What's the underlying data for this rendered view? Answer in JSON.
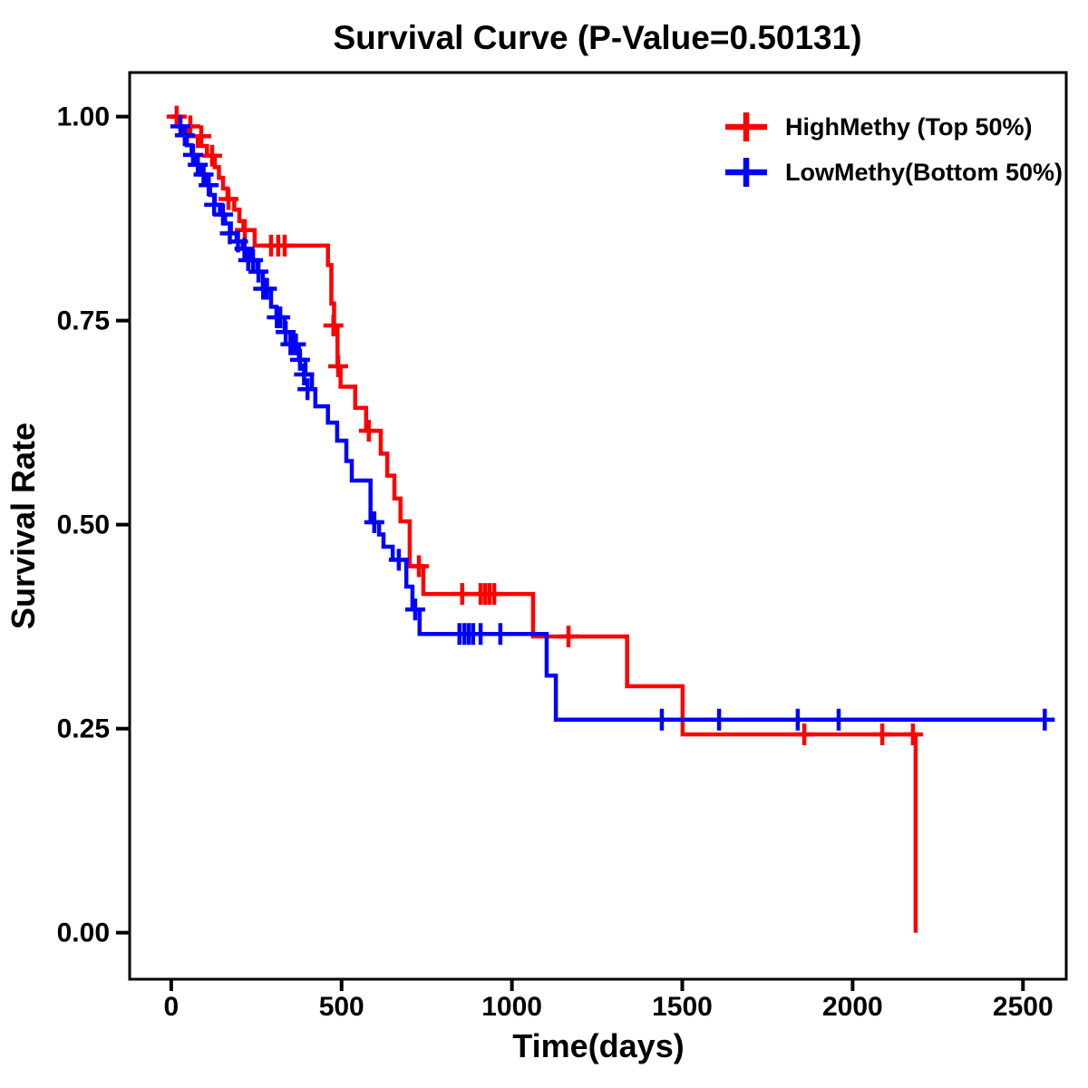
{
  "chart_data": {
    "type": "line",
    "chart_style": "kaplan-meier-survival-step",
    "title": "Survival Curve (P-Value=0.50131)",
    "p_value": "0.50131",
    "xlabel": "Time(days)",
    "ylabel": "Survival Rate",
    "xlim": [
      -122,
      2627
    ],
    "ylim": [
      -0.057,
      1.054
    ],
    "xticks": [
      0,
      500,
      1000,
      1500,
      2000,
      2500
    ],
    "xtick_labels": [
      "0",
      "500",
      "1000",
      "1500",
      "2000",
      "2500"
    ],
    "yticks": [
      0,
      0.25,
      0.5,
      0.75,
      1
    ],
    "ytick_labels": [
      "0.00",
      "0.25",
      "0.50",
      "0.75",
      "1.00"
    ],
    "grid": false,
    "legend": {
      "position": "top-right",
      "items": [
        {
          "label": "HighMethy (Top 50%)",
          "color": "#FF0000"
        },
        {
          "label": "LowMethy(Bottom 50%)",
          "color": "#0000FF"
        }
      ]
    },
    "series": [
      {
        "name": "HighMethy (Top 50%)",
        "color": "#FF0000",
        "steps": [
          [
            0,
            1.0
          ],
          [
            25,
            0.988
          ],
          [
            50,
            0.976
          ],
          [
            78,
            0.964
          ],
          [
            105,
            0.952
          ],
          [
            128,
            0.938
          ],
          [
            140,
            0.925
          ],
          [
            152,
            0.912
          ],
          [
            165,
            0.899
          ],
          [
            185,
            0.886
          ],
          [
            200,
            0.872
          ],
          [
            212,
            0.861
          ],
          [
            245,
            0.842
          ],
          [
            460,
            0.818
          ],
          [
            470,
            0.771
          ],
          [
            478,
            0.744
          ],
          [
            488,
            0.694
          ],
          [
            497,
            0.669
          ],
          [
            540,
            0.643
          ],
          [
            572,
            0.615
          ],
          [
            615,
            0.587
          ],
          [
            634,
            0.56
          ],
          [
            655,
            0.532
          ],
          [
            673,
            0.504
          ],
          [
            700,
            0.449
          ],
          [
            740,
            0.415
          ],
          [
            1062,
            0.363
          ],
          [
            1338,
            0.302
          ],
          [
            1501,
            0.243
          ],
          [
            2185,
            0.0
          ]
        ],
        "censors": [
          [
            16,
            1.0
          ],
          [
            56,
            0.988
          ],
          [
            88,
            0.976
          ],
          [
            120,
            0.952
          ],
          [
            168,
            0.899
          ],
          [
            216,
            0.861
          ],
          [
            293,
            0.842
          ],
          [
            314,
            0.842
          ],
          [
            333,
            0.842
          ],
          [
            476,
            0.744
          ],
          [
            490,
            0.694
          ],
          [
            580,
            0.615
          ],
          [
            727,
            0.449
          ],
          [
            854,
            0.415
          ],
          [
            908,
            0.415
          ],
          [
            921,
            0.415
          ],
          [
            934,
            0.415
          ],
          [
            948,
            0.415
          ],
          [
            1166,
            0.363
          ],
          [
            1858,
            0.243
          ],
          [
            2087,
            0.243
          ],
          [
            2177,
            0.243
          ]
        ],
        "end_time": null
      },
      {
        "name": "LowMethy(Bottom 50%)",
        "color": "#0000FF",
        "steps": [
          [
            0,
            1.0
          ],
          [
            20,
            0.988
          ],
          [
            33,
            0.977
          ],
          [
            46,
            0.965
          ],
          [
            60,
            0.953
          ],
          [
            72,
            0.941
          ],
          [
            86,
            0.929
          ],
          [
            100,
            0.916
          ],
          [
            114,
            0.904
          ],
          [
            128,
            0.892
          ],
          [
            143,
            0.88
          ],
          [
            158,
            0.869
          ],
          [
            175,
            0.857
          ],
          [
            192,
            0.847
          ],
          [
            210,
            0.838
          ],
          [
            230,
            0.824
          ],
          [
            253,
            0.81
          ],
          [
            269,
            0.789
          ],
          [
            293,
            0.767
          ],
          [
            309,
            0.754
          ],
          [
            333,
            0.736
          ],
          [
            359,
            0.721
          ],
          [
            375,
            0.702
          ],
          [
            394,
            0.684
          ],
          [
            413,
            0.666
          ],
          [
            423,
            0.645
          ],
          [
            460,
            0.625
          ],
          [
            487,
            0.603
          ],
          [
            514,
            0.578
          ],
          [
            530,
            0.554
          ],
          [
            585,
            0.503
          ],
          [
            610,
            0.488
          ],
          [
            623,
            0.473
          ],
          [
            650,
            0.457
          ],
          [
            690,
            0.424
          ],
          [
            708,
            0.396
          ],
          [
            729,
            0.366
          ],
          [
            1102,
            0.315
          ],
          [
            1129,
            0.261
          ]
        ],
        "censors": [
          [
            27,
            0.988
          ],
          [
            40,
            0.977
          ],
          [
            64,
            0.953
          ],
          [
            78,
            0.941
          ],
          [
            95,
            0.929
          ],
          [
            110,
            0.916
          ],
          [
            126,
            0.892
          ],
          [
            152,
            0.88
          ],
          [
            172,
            0.857
          ],
          [
            196,
            0.847
          ],
          [
            215,
            0.838
          ],
          [
            226,
            0.824
          ],
          [
            240,
            0.824
          ],
          [
            256,
            0.81
          ],
          [
            270,
            0.789
          ],
          [
            281,
            0.789
          ],
          [
            310,
            0.754
          ],
          [
            320,
            0.754
          ],
          [
            336,
            0.736
          ],
          [
            350,
            0.721
          ],
          [
            358,
            0.721
          ],
          [
            366,
            0.721
          ],
          [
            378,
            0.702
          ],
          [
            390,
            0.684
          ],
          [
            400,
            0.666
          ],
          [
            596,
            0.503
          ],
          [
            668,
            0.457
          ],
          [
            716,
            0.396
          ],
          [
            846,
            0.366
          ],
          [
            860,
            0.366
          ],
          [
            873,
            0.366
          ],
          [
            886,
            0.366
          ],
          [
            908,
            0.366
          ],
          [
            966,
            0.366
          ],
          [
            1440,
            0.261
          ],
          [
            1608,
            0.261
          ],
          [
            1839,
            0.261
          ],
          [
            1959,
            0.261
          ],
          [
            2564,
            0.261
          ]
        ],
        "end_time": 2590
      }
    ]
  },
  "colors": {
    "high_methy": "#FF0000",
    "low_methy": "#0000FF",
    "axis": "#000000",
    "background": "#FFFFFF"
  }
}
